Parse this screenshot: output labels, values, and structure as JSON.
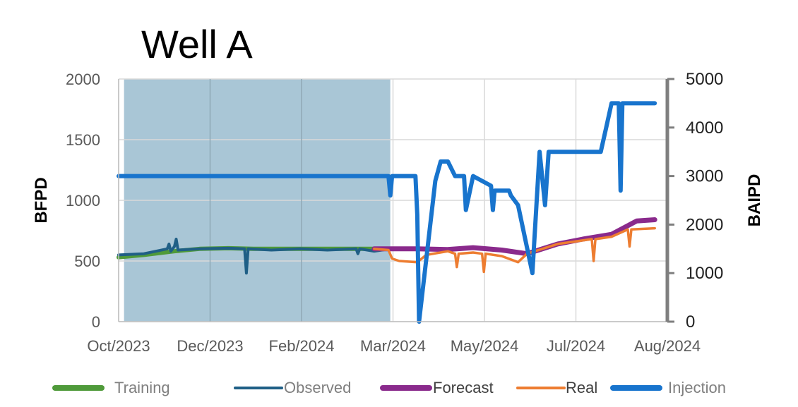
{
  "chart_data": {
    "type": "line",
    "title": "Well A",
    "ylabel_left": "BFPD",
    "ylabel_right": "BAIPD",
    "ylim_left": [
      0,
      2000
    ],
    "ylim_right": [
      0,
      5000
    ],
    "yticks_left": [
      "0",
      "500",
      "1000",
      "1500",
      "2000"
    ],
    "yticks_right": [
      "0",
      "1000",
      "2000",
      "3000",
      "4000",
      "5000"
    ],
    "x_range": [
      "2023-10-01",
      "2024-08-01"
    ],
    "x_tick_labels": [
      "Oct/2023",
      "Dec/2023",
      "Feb/2024",
      "Mar/2024",
      "May/2024",
      "Jul/2024",
      "Aug/2024"
    ],
    "training_window": [
      "2023-10-04",
      "2024-02-29"
    ],
    "grid": true,
    "legend_position": "bottom",
    "colors": {
      "training_band": "#a9c6d6",
      "training": "#4f9a3a",
      "observed": "#1f5f86",
      "forecast": "#8a2a8c",
      "real": "#ed7d31",
      "injection": "#1874cd"
    },
    "series": [
      {
        "name": "Training",
        "axis": "left",
        "x": [
          "2023-10-01",
          "2023-10-15",
          "2023-11-01",
          "2023-11-15",
          "2023-12-01",
          "2023-12-15",
          "2024-01-01",
          "2024-01-15",
          "2024-02-01",
          "2024-02-15",
          "2024-02-29"
        ],
        "y": [
          530,
          550,
          580,
          600,
          605,
          600,
          600,
          600,
          600,
          600,
          600
        ]
      },
      {
        "name": "Observed",
        "axis": "left",
        "x": [
          "2023-10-01",
          "2023-10-15",
          "2023-10-28",
          "2023-10-29",
          "2023-10-30",
          "2023-11-01",
          "2023-11-02",
          "2023-11-03",
          "2023-11-15",
          "2023-12-01",
          "2023-12-10",
          "2023-12-11",
          "2023-12-12",
          "2023-12-25",
          "2024-01-10",
          "2024-01-25",
          "2024-02-01",
          "2024-02-10",
          "2024-02-11",
          "2024-02-12",
          "2024-02-20",
          "2024-02-29"
        ],
        "y": [
          550,
          560,
          600,
          640,
          580,
          620,
          680,
          590,
          600,
          605,
          600,
          400,
          600,
          590,
          600,
          590,
          595,
          600,
          560,
          600,
          580,
          600
        ]
      },
      {
        "name": "Forecast",
        "axis": "left",
        "x": [
          "2024-02-20",
          "2024-03-15",
          "2024-04-01",
          "2024-04-15",
          "2024-05-01",
          "2024-05-15",
          "2024-06-01",
          "2024-06-15",
          "2024-07-01",
          "2024-07-15",
          "2024-07-25"
        ],
        "y": [
          600,
          600,
          595,
          610,
          590,
          560,
          640,
          680,
          720,
          830,
          840
        ]
      },
      {
        "name": "Real",
        "axis": "left",
        "x": [
          "2024-02-20",
          "2024-02-28",
          "2024-03-01",
          "2024-03-05",
          "2024-03-15",
          "2024-03-20",
          "2024-04-01",
          "2024-04-05",
          "2024-04-06",
          "2024-04-07",
          "2024-04-15",
          "2024-04-20",
          "2024-04-21",
          "2024-04-22",
          "2024-05-01",
          "2024-05-10",
          "2024-05-15",
          "2024-06-01",
          "2024-06-20",
          "2024-06-21",
          "2024-06-22",
          "2024-07-01",
          "2024-07-10",
          "2024-07-11",
          "2024-07-12",
          "2024-07-25"
        ],
        "y": [
          600,
          590,
          520,
          500,
          490,
          550,
          580,
          560,
          450,
          560,
          570,
          560,
          410,
          560,
          540,
          490,
          560,
          640,
          680,
          500,
          680,
          700,
          760,
          620,
          760,
          770
        ]
      },
      {
        "name": "Injection",
        "axis": "right",
        "x": [
          "2023-10-01",
          "2024-02-28",
          "2024-02-29",
          "2024-03-01",
          "2024-03-10",
          "2024-03-14",
          "2024-03-15",
          "2024-03-16",
          "2024-03-25",
          "2024-03-28",
          "2024-04-01",
          "2024-04-05",
          "2024-04-10",
          "2024-04-11",
          "2024-04-15",
          "2024-04-25",
          "2024-04-26",
          "2024-04-27",
          "2024-05-05",
          "2024-05-06",
          "2024-05-10",
          "2024-05-18",
          "2024-05-22",
          "2024-05-25",
          "2024-05-27",
          "2024-06-01",
          "2024-06-03",
          "2024-06-04",
          "2024-06-25",
          "2024-06-28",
          "2024-07-01",
          "2024-07-05",
          "2024-07-06",
          "2024-07-07",
          "2024-07-25"
        ],
        "y": [
          3000,
          3000,
          2600,
          3000,
          3000,
          3000,
          2200,
          0,
          2900,
          3300,
          3300,
          3000,
          3000,
          2300,
          3000,
          2800,
          2300,
          2700,
          2700,
          2600,
          2400,
          1000,
          3500,
          2400,
          3500,
          3500,
          3500,
          3500,
          3500,
          4000,
          4500,
          4500,
          2700,
          4500,
          4500
        ]
      }
    ]
  },
  "legend": [
    {
      "label": "Training",
      "key": "training",
      "dark": false
    },
    {
      "label": "Observed",
      "key": "observed",
      "dark": false
    },
    {
      "label": "Forecast",
      "key": "forecast",
      "dark": true
    },
    {
      "label": "Real",
      "key": "real",
      "dark": true
    },
    {
      "label": "Injection",
      "key": "injection",
      "dark": false
    }
  ]
}
